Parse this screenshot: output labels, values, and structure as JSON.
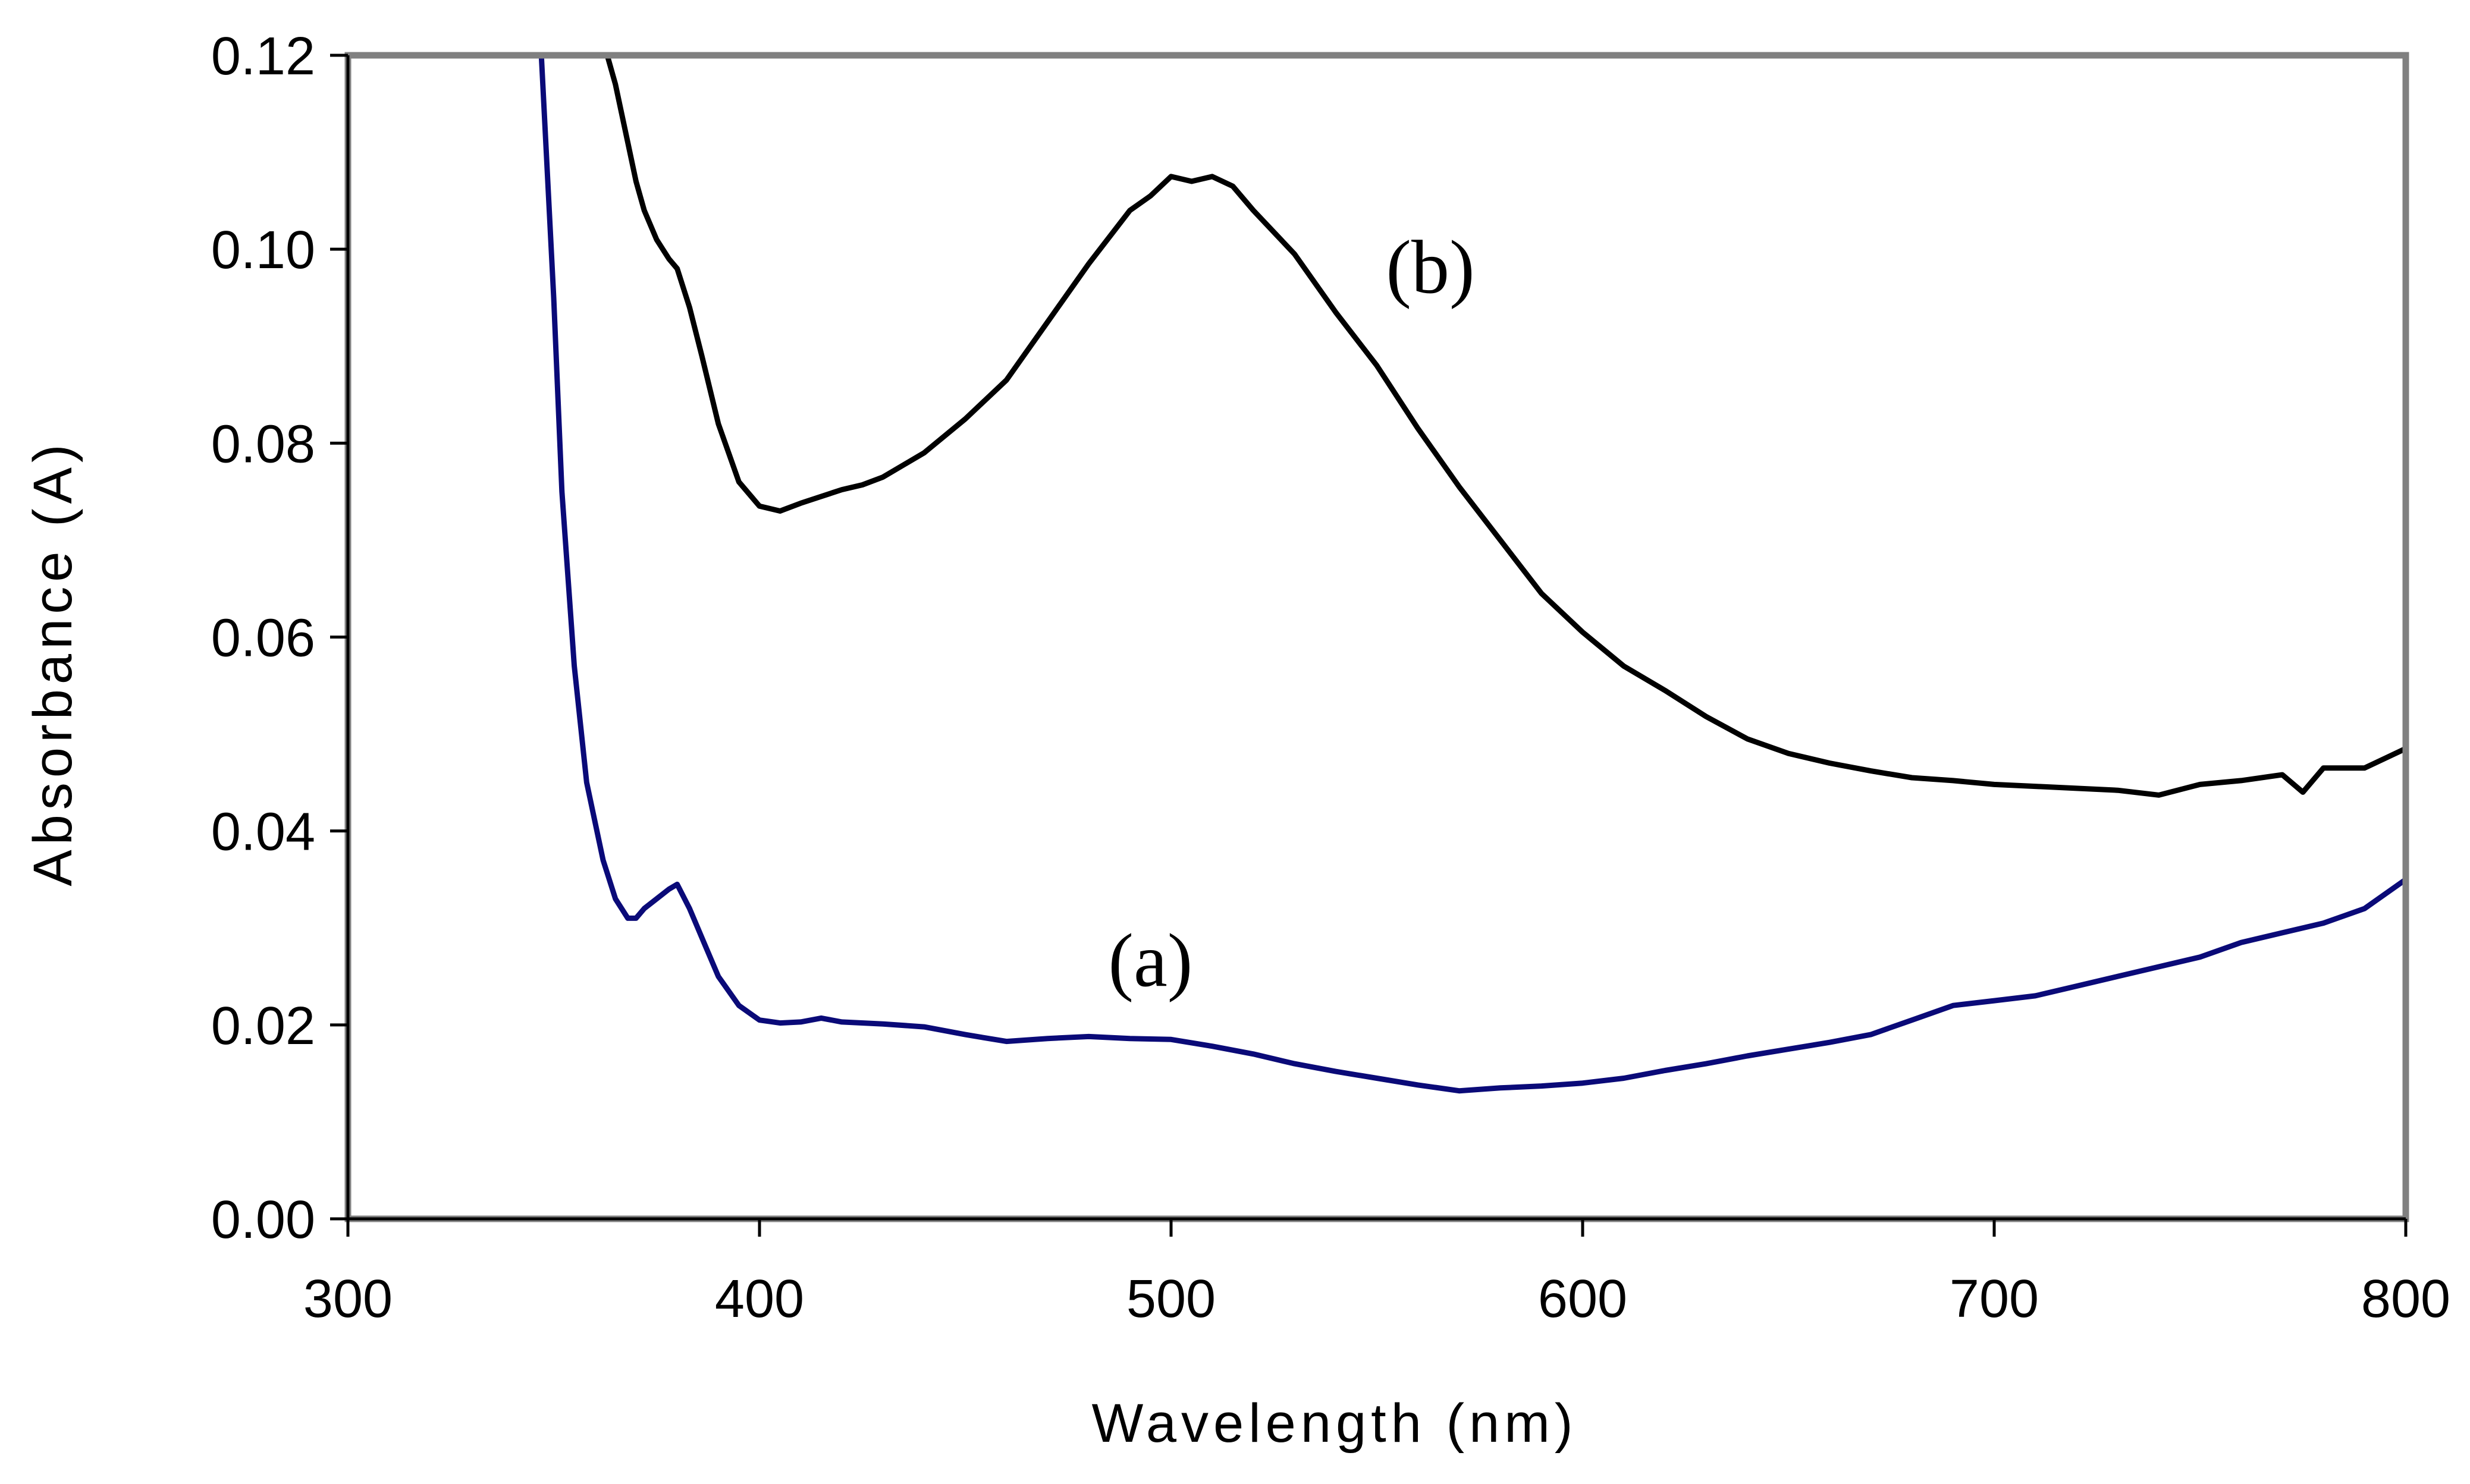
{
  "chart_data": {
    "type": "line",
    "title": "",
    "xlabel": "Wavelength (nm)",
    "ylabel": "Absorbance (A)",
    "xlim": [
      300,
      800
    ],
    "ylim": [
      0,
      0.12
    ],
    "x_ticks": [
      300,
      400,
      500,
      600,
      700,
      800
    ],
    "x_tick_labels": [
      "300",
      "400",
      "500",
      "600",
      "700",
      "800"
    ],
    "y_ticks": [
      0,
      0.02,
      0.04,
      0.06,
      0.08,
      0.1,
      0.12
    ],
    "y_tick_labels": [
      "0.00",
      "0.02",
      "0.04",
      "0.06",
      "0.08",
      "0.10",
      "0.12"
    ],
    "grid": false,
    "plot_border_color": "#808080",
    "series": [
      {
        "name": "(a)",
        "label": "(a)",
        "label_at": [
          495,
          0.024
        ],
        "color": "#0a0a78",
        "x": [
          347,
          350,
          352,
          355,
          358,
          362,
          365,
          368,
          370,
          372,
          375,
          378,
          380,
          383,
          387,
          390,
          395,
          400,
          405,
          410,
          415,
          420,
          430,
          440,
          450,
          460,
          470,
          480,
          490,
          500,
          510,
          520,
          530,
          540,
          550,
          560,
          570,
          580,
          590,
          600,
          610,
          620,
          630,
          640,
          650,
          660,
          670,
          680,
          690,
          700,
          710,
          720,
          730,
          740,
          750,
          760,
          770,
          780,
          790,
          800
        ],
        "y": [
          0.12,
          0.095,
          0.075,
          0.057,
          0.045,
          0.037,
          0.033,
          0.031,
          0.031,
          0.032,
          0.033,
          0.034,
          0.0345,
          0.032,
          0.028,
          0.025,
          0.022,
          0.0205,
          0.0202,
          0.0203,
          0.0207,
          0.0203,
          0.0201,
          0.0198,
          0.019,
          0.0183,
          0.0186,
          0.0188,
          0.0186,
          0.0185,
          0.0178,
          0.017,
          0.016,
          0.0152,
          0.0145,
          0.0138,
          0.0132,
          0.0135,
          0.0137,
          0.014,
          0.0145,
          0.0153,
          0.016,
          0.0168,
          0.0175,
          0.0182,
          0.019,
          0.0205,
          0.022,
          0.0225,
          0.023,
          0.024,
          0.025,
          0.026,
          0.027,
          0.0285,
          0.0295,
          0.0305,
          0.032,
          0.035
        ]
      },
      {
        "name": "(b)",
        "label": "(b)",
        "label_at": [
          563,
          0.0955
        ],
        "color": "#000000",
        "x": [
          363,
          365,
          368,
          370,
          372,
          375,
          378,
          380,
          383,
          386,
          390,
          395,
          400,
          405,
          410,
          415,
          420,
          425,
          430,
          440,
          450,
          460,
          470,
          480,
          490,
          495,
          500,
          505,
          510,
          515,
          520,
          530,
          540,
          550,
          560,
          570,
          580,
          590,
          600,
          610,
          620,
          630,
          640,
          650,
          660,
          670,
          680,
          690,
          700,
          710,
          720,
          730,
          740,
          750,
          760,
          770,
          775,
          780,
          790,
          800
        ],
        "y": [
          0.12,
          0.117,
          0.111,
          0.107,
          0.104,
          0.101,
          0.099,
          0.098,
          0.094,
          0.089,
          0.082,
          0.076,
          0.0735,
          0.073,
          0.0738,
          0.0745,
          0.0752,
          0.0757,
          0.0765,
          0.079,
          0.0825,
          0.0865,
          0.0925,
          0.0985,
          0.104,
          0.1055,
          0.1075,
          0.107,
          0.1075,
          0.1065,
          0.104,
          0.0995,
          0.0935,
          0.088,
          0.0815,
          0.0755,
          0.07,
          0.0645,
          0.0605,
          0.057,
          0.0545,
          0.0518,
          0.0495,
          0.048,
          0.047,
          0.0462,
          0.0455,
          0.0452,
          0.0448,
          0.0446,
          0.0444,
          0.0442,
          0.0437,
          0.0448,
          0.0452,
          0.0458,
          0.044,
          0.0465,
          0.0465,
          0.0485
        ]
      }
    ]
  }
}
